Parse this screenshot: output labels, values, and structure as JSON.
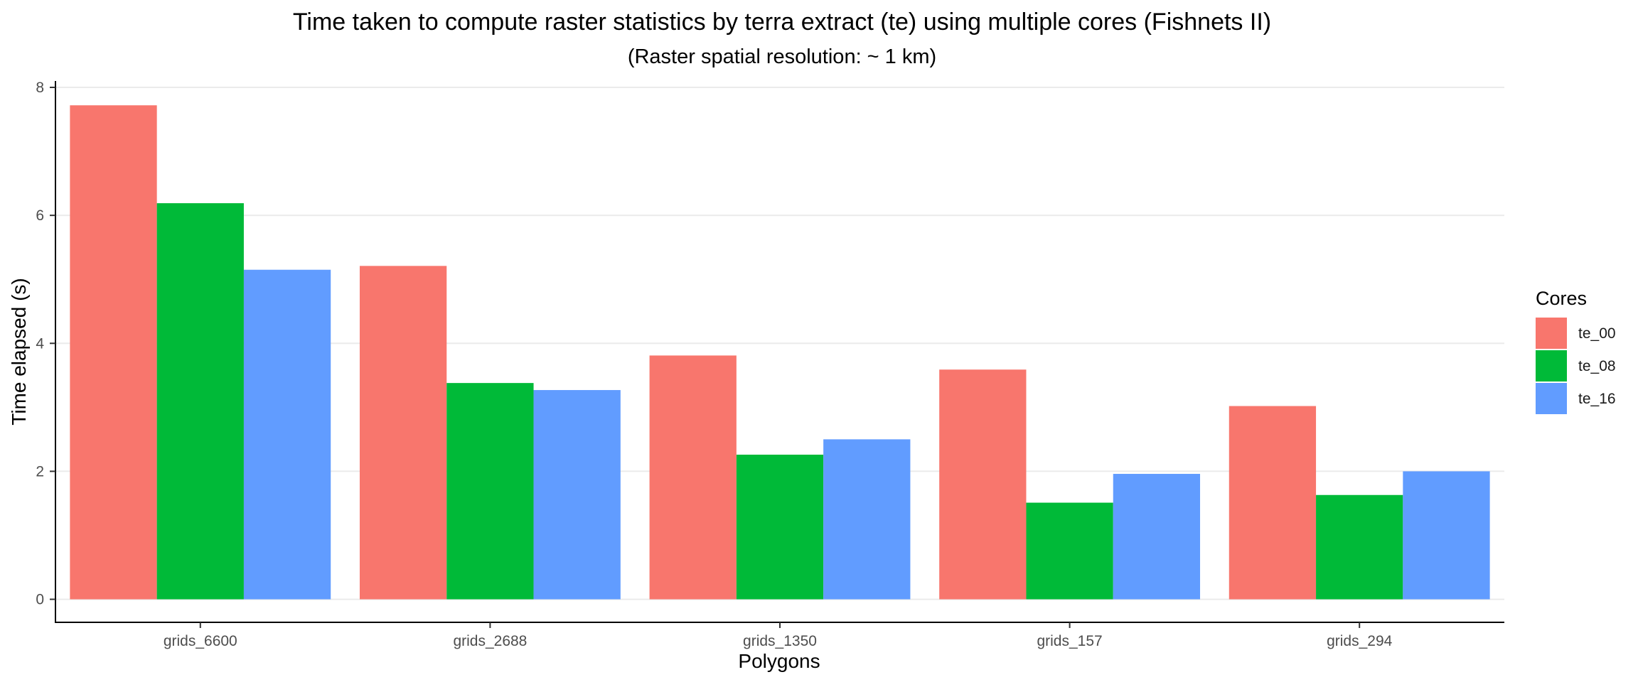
{
  "chart_data": {
    "type": "bar",
    "title": "Time taken to compute raster statistics by terra extract (te) using multiple cores (Fishnets II)",
    "subtitle": "(Raster spatial resolution: ~ 1 km)",
    "xlabel": "Polygons",
    "ylabel": "Time elapsed (s)",
    "ylim": [
      -0.36,
      8.1
    ],
    "yticks": [
      0,
      2,
      4,
      6,
      8
    ],
    "grid": "horizontal",
    "legend": {
      "title": "Cores",
      "placement": "right"
    },
    "categories": [
      "grids_6600",
      "grids_2688",
      "grids_1350",
      "grids_157",
      "grids_294"
    ],
    "series": [
      {
        "name": "te_00",
        "color": "#F8766D",
        "values": [
          7.72,
          5.21,
          3.81,
          3.59,
          3.02
        ]
      },
      {
        "name": "te_08",
        "color": "#00BA38",
        "values": [
          6.19,
          3.38,
          2.26,
          1.51,
          1.63
        ]
      },
      {
        "name": "te_16",
        "color": "#619CFF",
        "values": [
          5.15,
          3.27,
          2.5,
          1.96,
          2.0
        ]
      }
    ]
  }
}
